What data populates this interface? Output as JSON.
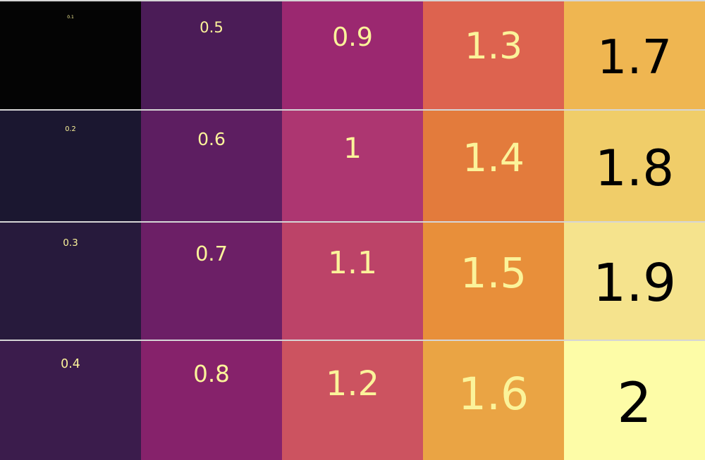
{
  "grid": {
    "rows": [
      [
        {
          "text": "0.1",
          "background": "#040404",
          "text_color": "#fbf39a"
        },
        {
          "text": "0.5",
          "background": "#4b1c57",
          "text_color": "#fbf39a"
        },
        {
          "text": "0.9",
          "background": "#9b2870",
          "text_color": "#fbf39a"
        },
        {
          "text": "1.3",
          "background": "#dd634f",
          "text_color": "#fbf39a"
        },
        {
          "text": "1.7",
          "background": "#efb651",
          "text_color": "#000000"
        }
      ],
      [
        {
          "text": "0.2",
          "background": "#1b1730",
          "text_color": "#fbf39a"
        },
        {
          "text": "0.6",
          "background": "#5d1e61",
          "text_color": "#fbf39a"
        },
        {
          "text": "1",
          "background": "#ad3671",
          "text_color": "#fbf39a"
        },
        {
          "text": "1.4",
          "background": "#e37b3c",
          "text_color": "#fbf39a"
        },
        {
          "text": "1.8",
          "background": "#f0cd69",
          "text_color": "#000000"
        }
      ],
      [
        {
          "text": "0.3",
          "background": "#271a3c",
          "text_color": "#fbf39a"
        },
        {
          "text": "0.7",
          "background": "#6c1f66",
          "text_color": "#fbf39a"
        },
        {
          "text": "1.1",
          "background": "#bc4368",
          "text_color": "#fbf39a"
        },
        {
          "text": "1.5",
          "background": "#e88f3a",
          "text_color": "#fbf39a"
        },
        {
          "text": "1.9",
          "background": "#f5e38d",
          "text_color": "#000000"
        }
      ],
      [
        {
          "text": "0.4",
          "background": "#3b1c4c",
          "text_color": "#fbf39a"
        },
        {
          "text": "0.8",
          "background": "#86226b",
          "text_color": "#fbf39a"
        },
        {
          "text": "1.2",
          "background": "#cc5360",
          "text_color": "#fbf39a"
        },
        {
          "text": "1.6",
          "background": "#eaa444",
          "text_color": "#fbf39a"
        },
        {
          "text": "2",
          "background": "#fdfca7",
          "text_color": "#000000"
        }
      ]
    ]
  }
}
